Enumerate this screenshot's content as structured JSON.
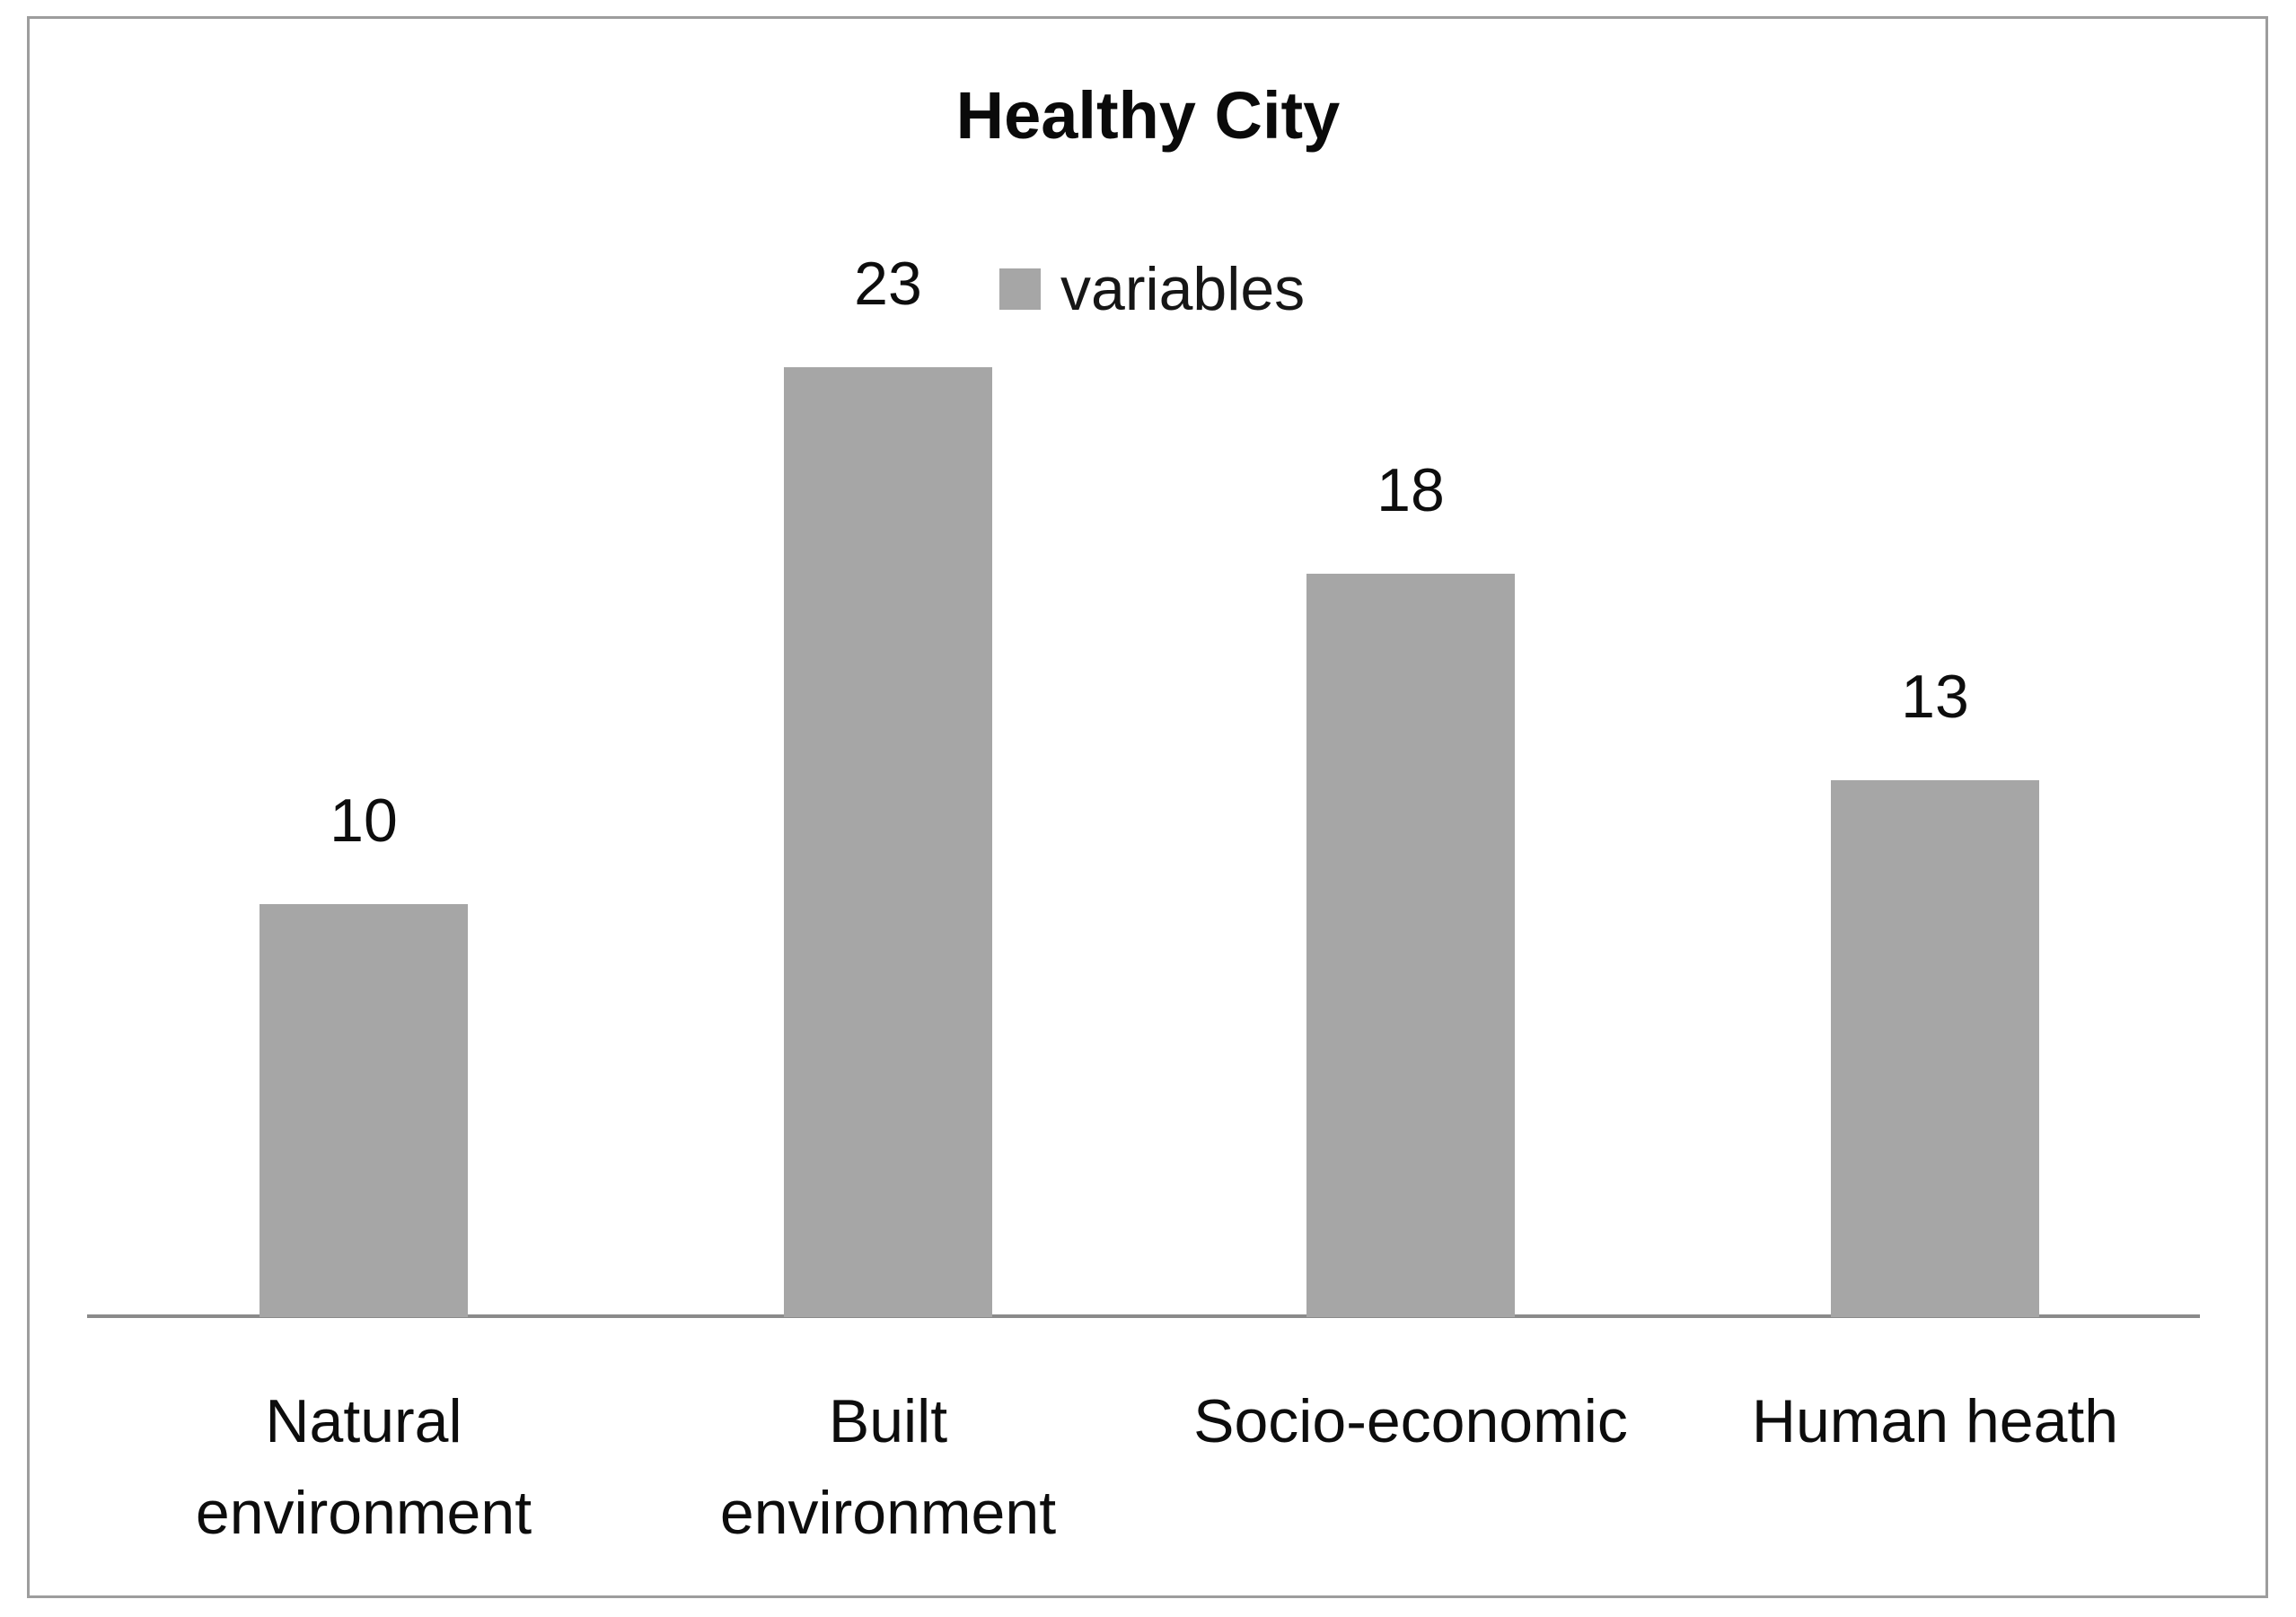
{
  "chart_data": {
    "type": "bar",
    "title": "Healthy City",
    "categories": [
      "Natural\nenvironment",
      "Built\nenvironment",
      "Socio-economic",
      "Human heath"
    ],
    "values": [
      10,
      23,
      18,
      13
    ],
    "series": [
      {
        "name": "variables",
        "values": [
          10,
          23,
          18,
          13
        ]
      }
    ],
    "legend": [
      "variables"
    ],
    "data_labels": [
      "10",
      "23",
      "18",
      "13"
    ],
    "xlabel": "",
    "ylabel": "",
    "ylim": [
      0,
      25
    ],
    "grid": "off",
    "y_axis_visible": false,
    "legend_position": "top-center",
    "colors": {
      "bar": "#a6a6a6",
      "axis_line": "#8a8a8a",
      "frame_border": "#9d9d9d",
      "text": "#111111",
      "background": "#ffffff"
    }
  }
}
